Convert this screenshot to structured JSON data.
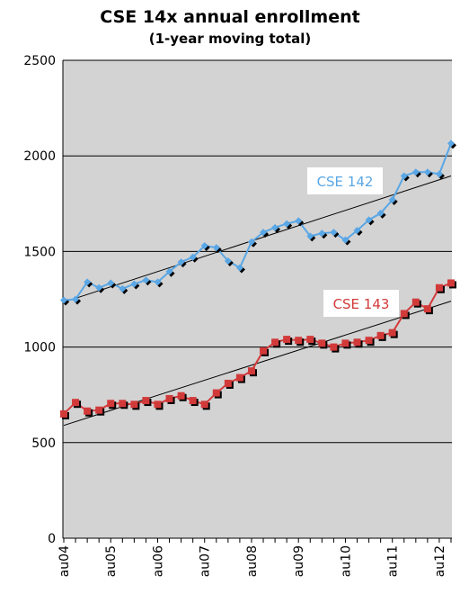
{
  "chart_data": {
    "type": "line",
    "title": "CSE 14x annual enrollment",
    "subtitle": "(1-year moving total)",
    "xlabel": "",
    "ylabel": "",
    "ylim": [
      0,
      2500
    ],
    "yticks": [
      0,
      500,
      1000,
      1500,
      2000,
      2500
    ],
    "x_tick_labels": [
      "au04",
      "au05",
      "au06",
      "au07",
      "au08",
      "au09",
      "au10",
      "au11",
      "au12"
    ],
    "grid": "horizontal",
    "series": [
      {
        "name": "CSE 142",
        "color": "#5aa7e6",
        "values": [
          1245,
          1250,
          1340,
          1310,
          1335,
          1305,
          1330,
          1350,
          1340,
          1395,
          1445,
          1470,
          1530,
          1520,
          1450,
          1415,
          1550,
          1600,
          1625,
          1645,
          1660,
          1580,
          1595,
          1600,
          1560,
          1610,
          1665,
          1700,
          1770,
          1895,
          1915,
          1915,
          1905,
          2065
        ],
        "trend": [
          1235,
          1895
        ]
      },
      {
        "name": "CSE 143",
        "color": "#d23a3a",
        "values": [
          650,
          710,
          665,
          670,
          705,
          705,
          700,
          720,
          700,
          730,
          745,
          720,
          700,
          760,
          810,
          840,
          875,
          980,
          1025,
          1040,
          1035,
          1040,
          1020,
          1000,
          1020,
          1025,
          1035,
          1060,
          1075,
          1175,
          1235,
          1200,
          1310,
          1335
        ],
        "trend": [
          590,
          1240
        ]
      }
    ]
  }
}
